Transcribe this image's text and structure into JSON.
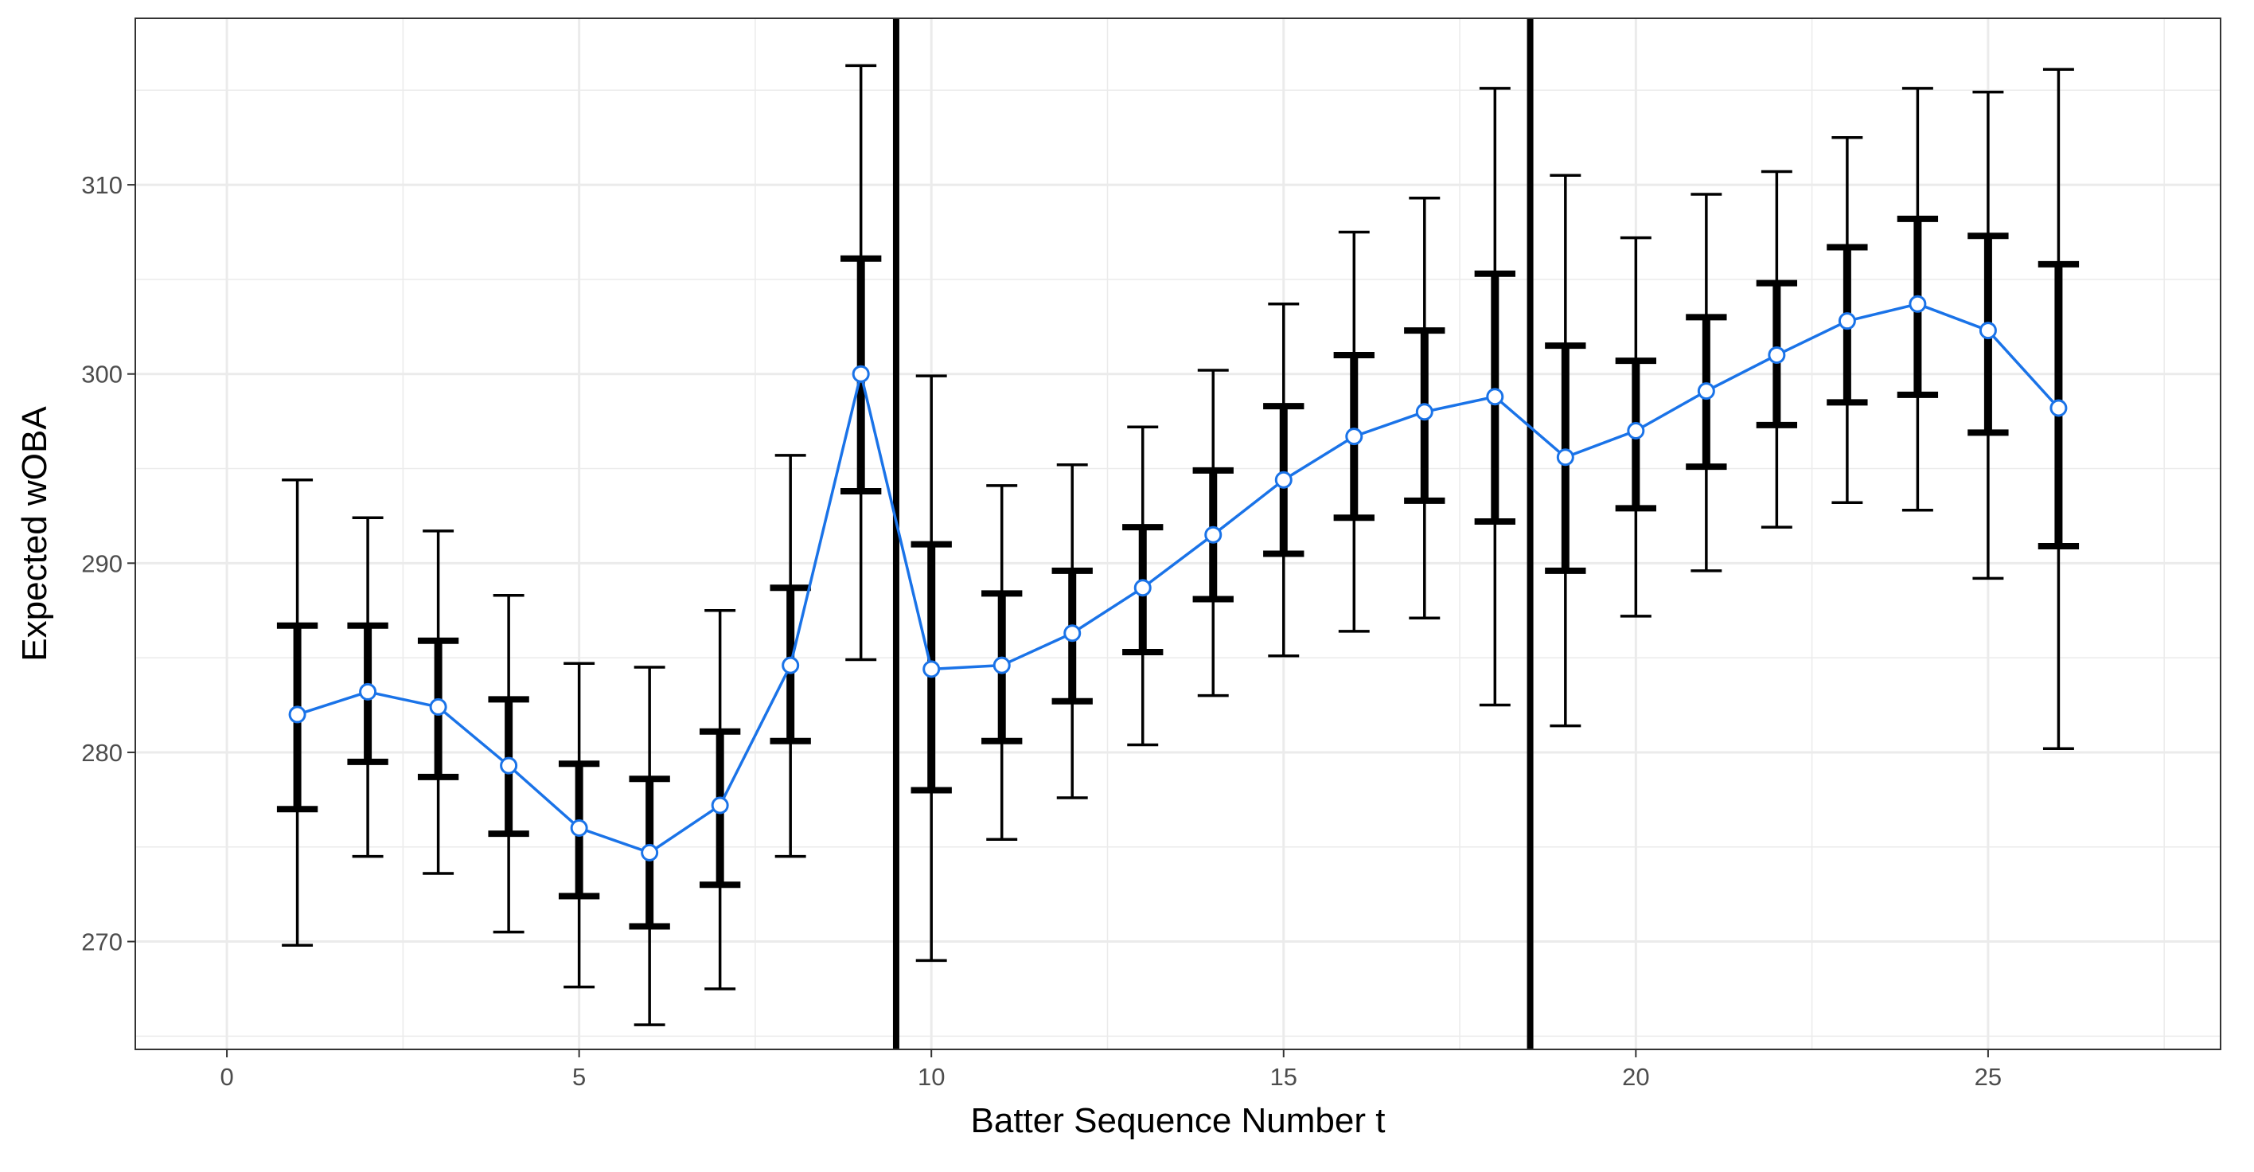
{
  "chart_data": {
    "type": "line",
    "title": "",
    "xlabel": "Batter Sequence Number t",
    "ylabel": "Expected wOBA",
    "xlim": [
      -1.3,
      28.3
    ],
    "ylim": [
      264.3,
      318.8
    ],
    "x_ticks": [
      0,
      5,
      10,
      15,
      20,
      25
    ],
    "x_tick_labels": [
      "0",
      "5",
      "10",
      "15",
      "20",
      "25"
    ],
    "y_ticks": [
      270,
      280,
      290,
      300,
      310
    ],
    "y_tick_labels": [
      "270",
      "280",
      "290",
      "300",
      "310"
    ],
    "grid": true,
    "legend": "none",
    "colors": {
      "line": "#1a73e8",
      "point_fill": "#ffffff",
      "error_bars": "#000000",
      "grid": "#ebebeb",
      "panel_border": "#333333"
    },
    "vertical_lines": [
      9.5,
      18.5
    ],
    "series": [
      {
        "x": [
          1,
          2,
          3,
          4,
          5,
          6,
          7,
          8,
          9,
          10,
          11,
          12,
          13,
          14,
          15,
          16,
          17,
          18,
          19,
          20,
          21,
          22,
          23,
          24,
          25,
          26
        ],
        "y": [
          282.0,
          283.2,
          282.4,
          279.3,
          276.0,
          274.7,
          277.2,
          284.6,
          300.0,
          284.4,
          284.6,
          286.3,
          288.7,
          291.5,
          294.4,
          296.7,
          298.0,
          298.8,
          295.6,
          297.0,
          299.1,
          301.0,
          302.8,
          303.7,
          302.3,
          298.2
        ],
        "inner_low": [
          277.0,
          279.5,
          278.7,
          275.7,
          272.4,
          270.8,
          273.0,
          280.6,
          293.8,
          278.0,
          280.6,
          282.7,
          285.3,
          288.1,
          290.5,
          292.4,
          293.3,
          292.2,
          289.6,
          292.9,
          295.1,
          297.3,
          298.5,
          298.9,
          296.9,
          290.9
        ],
        "inner_high": [
          286.7,
          286.7,
          285.9,
          282.8,
          279.4,
          278.6,
          281.1,
          288.7,
          306.1,
          291.0,
          288.4,
          289.6,
          291.9,
          294.9,
          298.3,
          301.0,
          302.3,
          305.3,
          301.5,
          300.7,
          303.0,
          304.8,
          306.7,
          308.2,
          307.3,
          305.8
        ],
        "outer_low": [
          269.8,
          274.5,
          273.6,
          270.5,
          267.6,
          265.6,
          267.5,
          274.5,
          284.9,
          269.0,
          275.4,
          277.6,
          280.4,
          283.0,
          285.1,
          286.4,
          287.1,
          282.5,
          281.4,
          287.2,
          289.6,
          291.9,
          293.2,
          292.8,
          289.2,
          280.2
        ],
        "outer_high": [
          294.4,
          292.4,
          291.7,
          288.3,
          284.7,
          284.5,
          287.5,
          295.7,
          316.3,
          299.9,
          294.1,
          295.2,
          297.2,
          300.2,
          303.7,
          307.5,
          309.3,
          315.1,
          310.5,
          307.2,
          309.5,
          310.7,
          312.5,
          315.1,
          314.9,
          316.1
        ]
      }
    ]
  }
}
